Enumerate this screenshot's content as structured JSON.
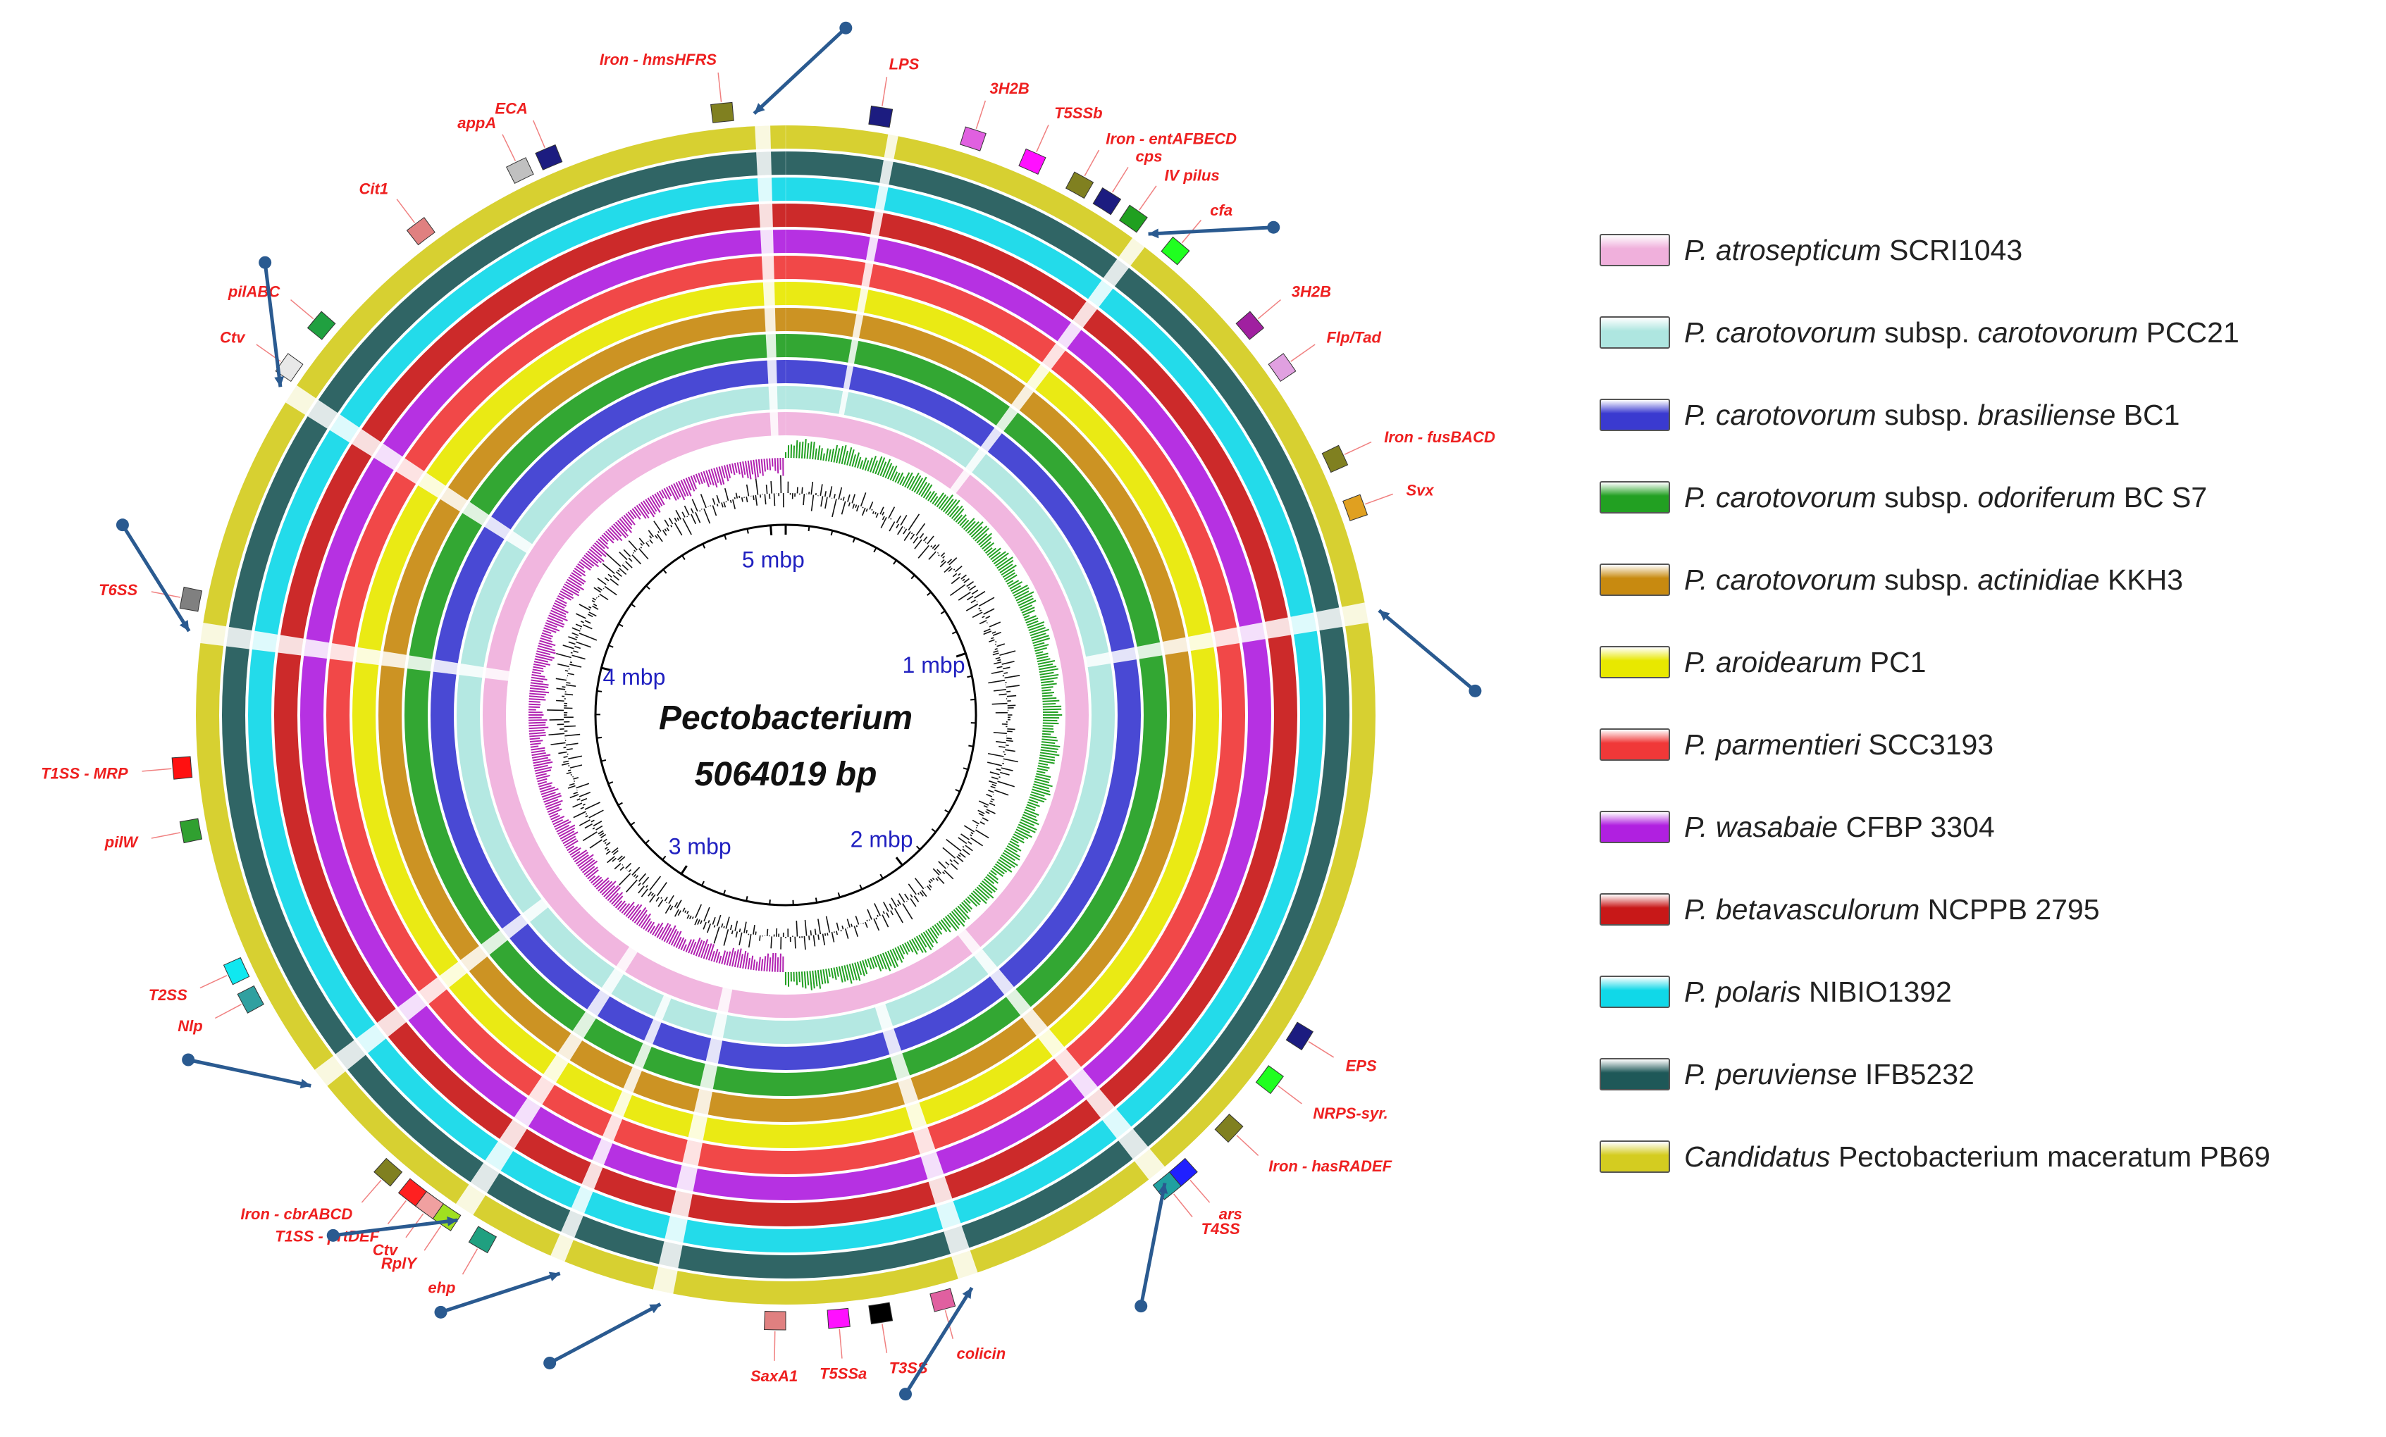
{
  "genome": {
    "name": "Pectobacterium",
    "size_label": "5064019 bp",
    "total_bp": 5064019,
    "ticks": [
      {
        "label": "1 mbp",
        "pos": 1000000
      },
      {
        "label": "2 mbp",
        "pos": 2000000
      },
      {
        "label": "3 mbp",
        "pos": 3000000
      },
      {
        "label": "4 mbp",
        "pos": 4000000
      },
      {
        "label": "5 mbp",
        "pos": 5000000
      }
    ]
  },
  "legend": [
    {
      "italic": "P. atrosepticum",
      "rest": " SCRI1043",
      "color": "#f0b0dc"
    },
    {
      "italic": "P. carotovorum",
      "rest": " subsp. ",
      "italic2": "carotovorum",
      "rest2": " PCC21",
      "color": "#aee6e0"
    },
    {
      "italic": "P. carotovorum",
      "rest": " subsp. ",
      "italic2": "brasiliense",
      "rest2": " BC1",
      "color": "#3a3ad0"
    },
    {
      "italic": "P. carotovorum",
      "rest": " subsp. ",
      "italic2": "odoriferum",
      "rest2": " BC S7",
      "color": "#22a022"
    },
    {
      "italic": "P. carotovorum",
      "rest": " subsp. ",
      "italic2": "actinidiae",
      "rest2": " KKH3",
      "color": "#c88a10"
    },
    {
      "italic": "P. aroidearum",
      "rest": " PC1",
      "color": "#e8e800"
    },
    {
      "italic": "P. parmentieri",
      "rest": " SCC3193",
      "color": "#f03838"
    },
    {
      "italic": "P. wasabaie",
      "rest": " CFBP 3304",
      "color": "#b020e0"
    },
    {
      "italic": "P. betavasculorum",
      "rest": " NCPPB 2795",
      "color": "#c81818"
    },
    {
      "italic": "P. polaris",
      "rest": " NIBIO1392",
      "color": "#10d8e8"
    },
    {
      "italic": "P. peruviense",
      "rest": " IFB5232",
      "color": "#1e5858"
    },
    {
      "italic": "Candidatus",
      "rest": " Pectobacterium maceratum PB69",
      "color": "#d4cc20"
    }
  ],
  "annotations": [
    {
      "label": "Iron - hmsHFRS",
      "angle": -6,
      "color": "#808020"
    },
    {
      "label": "LPS",
      "angle": 9,
      "color": "#1c1c80"
    },
    {
      "label": "3H2B",
      "angle": 18,
      "color": "#e060e0"
    },
    {
      "label": "T5SSb",
      "angle": 24,
      "color": "#ff10ff"
    },
    {
      "label": "Iron - entAFBECD",
      "angle": 29,
      "color": "#808020"
    },
    {
      "label": "cps",
      "angle": 32,
      "color": "#1c1c80"
    },
    {
      "label": "IV pilus",
      "angle": 35,
      "color": "#20a020"
    },
    {
      "label": "cfa",
      "angle": 40,
      "color": "#20ff20"
    },
    {
      "label": "3H2B",
      "angle": 50,
      "color": "#a020a0"
    },
    {
      "label": "Flp/Tad",
      "angle": 55,
      "color": "#e0a0e0"
    },
    {
      "label": "Iron - fusBACD",
      "angle": 65,
      "color": "#808020"
    },
    {
      "label": "Svx",
      "angle": 70,
      "color": "#e0a020"
    },
    {
      "label": "EPS",
      "angle": 122,
      "color": "#1c1c80"
    },
    {
      "label": "NRPS-syr.",
      "angle": 127,
      "color": "#20ff20"
    },
    {
      "label": "Iron - hasRADEF",
      "angle": 133,
      "color": "#808020"
    },
    {
      "label": "ars",
      "angle": 139,
      "color": "#2020ff"
    },
    {
      "label": "T4SS",
      "angle": 141,
      "color": "#20a0a0"
    },
    {
      "label": "colicin",
      "angle": 165,
      "color": "#e060a0"
    },
    {
      "label": "T3SS",
      "angle": 171,
      "color": "#000000"
    },
    {
      "label": "T5SSa",
      "angle": 175,
      "color": "#ff10ff"
    },
    {
      "label": "SaxA1",
      "angle": 181,
      "color": "#e08080"
    },
    {
      "label": "ehp",
      "angle": 210,
      "color": "#20a080"
    },
    {
      "label": "RplY",
      "angle": 214,
      "color": "#a0e020"
    },
    {
      "label": "Ctv",
      "angle": 216,
      "color": "#f0a0a0"
    },
    {
      "label": "T1SS - prtDEF",
      "angle": 218,
      "color": "#ff2020"
    },
    {
      "label": "Iron - cbrABCD",
      "angle": 221,
      "color": "#808020"
    },
    {
      "label": "Nlp",
      "angle": 242,
      "color": "#30a0a0"
    },
    {
      "label": "T2SS",
      "angle": 245,
      "color": "#10e8f0"
    },
    {
      "label": "pilW",
      "angle": 259,
      "color": "#30a030"
    },
    {
      "label": "T1SS - MRP",
      "angle": 265,
      "color": "#ff1010"
    },
    {
      "label": "T6SS",
      "angle": 281,
      "color": "#808080"
    },
    {
      "label": "Ctv",
      "angle": 305,
      "color": "#e8e8e8"
    },
    {
      "label": "pilABC",
      "angle": 310,
      "color": "#20a040"
    },
    {
      "label": "Cit1",
      "angle": 323,
      "color": "#e08080"
    },
    {
      "label": "appA",
      "angle": 334,
      "color": "#c0c0c0"
    },
    {
      "label": "ECA",
      "angle": 337,
      "color": "#1c1c80"
    }
  ],
  "arrows": [
    -3,
    37,
    80,
    141,
    162,
    192,
    202,
    213,
    232,
    278,
    303
  ]
}
